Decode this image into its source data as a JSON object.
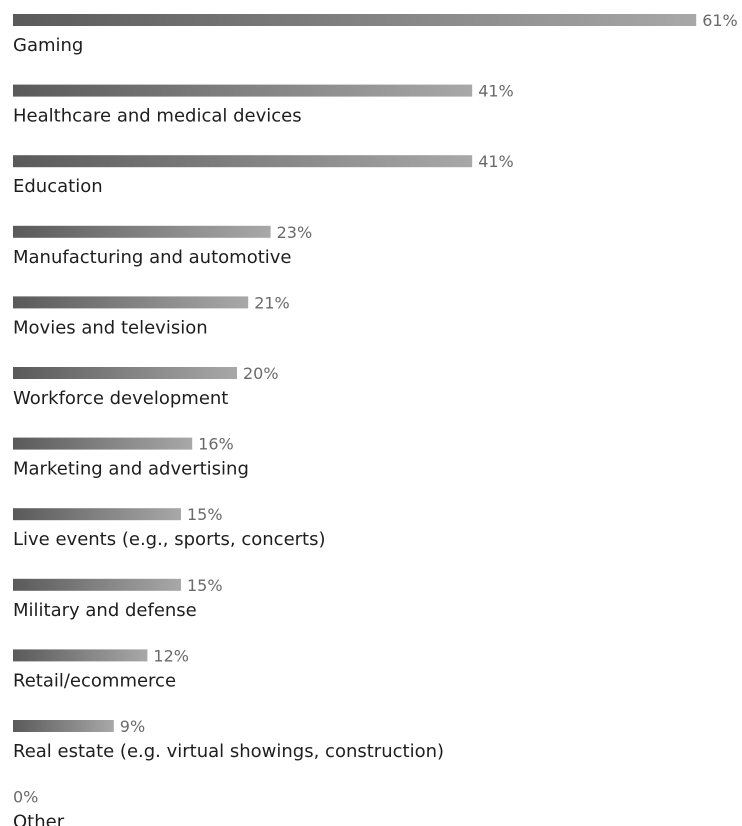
{
  "chart_data": {
    "type": "bar",
    "orientation": "horizontal",
    "categories": [
      "Gaming",
      "Healthcare and medical devices",
      "Education",
      "Manufacturing and automotive",
      "Movies and television",
      "Workforce development",
      "Marketing and advertising",
      "Live events (e.g., sports, concerts)",
      "Military and defense",
      "Retail/ecommerce",
      "Real estate (e.g. virtual showings, construction)",
      "Other"
    ],
    "values": [
      61,
      41,
      41,
      23,
      21,
      20,
      16,
      15,
      15,
      12,
      9,
      0
    ],
    "value_labels": [
      "61%",
      "41%",
      "41%",
      "23%",
      "21%",
      "20%",
      "16%",
      "15%",
      "15%",
      "12%",
      "9%",
      "0%"
    ],
    "unit": "%",
    "grid": false,
    "legend": "none",
    "colors": {
      "bar_start": "#5a5a5a",
      "bar_end": "#a8a8a8",
      "label": "#1e1e1e",
      "value": "#6a6a6a"
    }
  }
}
